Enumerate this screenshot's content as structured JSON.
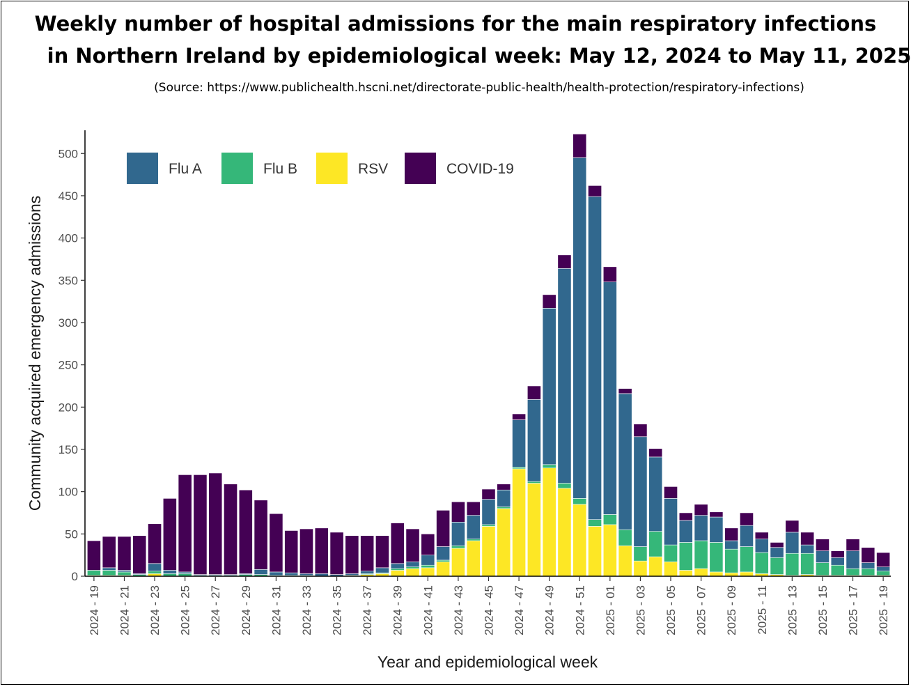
{
  "header": {
    "title_line1": "Weekly number of hospital admissions for the main respiratory infections",
    "title_line2": "in Northern Ireland by epidemiological week: May 12, 2024 to May 11, 2025",
    "source": "(Source: https://www.publichealth.hscni.net/directorate-public-health/health-protection/respiratory-infections)"
  },
  "chart_data": {
    "type": "bar",
    "stacked": true,
    "title": "Weekly number of hospital admissions for the main respiratory infections in Northern Ireland by epidemiological week: May 12, 2024 to May 11, 2025",
    "xlabel": "Year and epidemiological week",
    "ylabel": "Community acquired emergency admissions",
    "ylim": [
      0,
      525
    ],
    "yticks": [
      0,
      50,
      100,
      150,
      200,
      250,
      300,
      350,
      400,
      450,
      500
    ],
    "grid": false,
    "legend_position": "top-left",
    "categories": [
      "2024 - 19",
      "2024 - 20",
      "2024 - 21",
      "2024 - 22",
      "2024 - 23",
      "2024 - 24",
      "2024 - 25",
      "2024 - 26",
      "2024 - 27",
      "2024 - 28",
      "2024 - 29",
      "2024 - 30",
      "2024 - 31",
      "2024 - 32",
      "2024 - 33",
      "2024 - 34",
      "2024 - 35",
      "2024 - 36",
      "2024 - 37",
      "2024 - 38",
      "2024 - 39",
      "2024 - 40",
      "2024 - 41",
      "2024 - 42",
      "2024 - 43",
      "2024 - 44",
      "2024 - 45",
      "2024 - 46",
      "2024 - 47",
      "2024 - 48",
      "2024 - 49",
      "2024 - 50",
      "2024 - 51",
      "2024 - 52",
      "2025 - 01",
      "2025 - 02",
      "2025 - 03",
      "2025 - 04",
      "2025 - 05",
      "2025 - 06",
      "2025 - 07",
      "2025 - 08",
      "2025 - 09",
      "2025 - 10",
      "2025 - 11",
      "2025 - 12",
      "2025 - 13",
      "2025 - 14",
      "2025 - 15",
      "2025 - 16",
      "2025 - 17",
      "2025 - 18",
      "2025 - 19"
    ],
    "tick_labels": [
      "2024 - 19",
      "2024 - 21",
      "2024 - 23",
      "2024 - 25",
      "2024 - 27",
      "2024 - 29",
      "2024 - 31",
      "2024 - 33",
      "2024 - 35",
      "2024 - 37",
      "2024 - 39",
      "2024 - 41",
      "2024 - 43",
      "2024 - 45",
      "2024 - 47",
      "2024 - 49",
      "2024 - 51",
      "2025 - 01",
      "2025 - 03",
      "2025 - 05",
      "2025 - 07",
      "2025 - 09",
      "2025 - 11",
      "2025 - 13",
      "2025 - 15",
      "2025 - 17",
      "2025 - 19"
    ],
    "series": [
      {
        "name": "RSV",
        "color": "#fde725",
        "values": [
          1,
          1,
          1,
          0,
          3,
          0,
          0,
          0,
          0,
          0,
          0,
          0,
          0,
          0,
          0,
          0,
          0,
          1,
          2,
          3,
          7,
          9,
          10,
          17,
          33,
          42,
          59,
          80,
          127,
          110,
          128,
          104,
          85,
          59,
          61,
          36,
          18,
          23,
          17,
          7,
          9,
          5,
          4,
          5,
          3,
          2,
          1,
          2,
          1,
          1,
          1,
          1,
          1
        ]
      },
      {
        "name": "Flu B",
        "color": "#35b779",
        "values": [
          6,
          6,
          4,
          2,
          3,
          3,
          3,
          1,
          1,
          1,
          2,
          2,
          1,
          1,
          1,
          0,
          0,
          0,
          1,
          1,
          2,
          2,
          3,
          2,
          3,
          2,
          2,
          2,
          2,
          2,
          4,
          6,
          7,
          8,
          12,
          19,
          17,
          30,
          20,
          33,
          33,
          35,
          28,
          30,
          25,
          20,
          26,
          25,
          15,
          12,
          8,
          8,
          5
        ]
      },
      {
        "name": "Flu A",
        "color": "#31688e",
        "values": [
          0,
          3,
          2,
          1,
          9,
          4,
          2,
          1,
          1,
          1,
          1,
          6,
          4,
          3,
          2,
          3,
          2,
          2,
          3,
          6,
          6,
          6,
          12,
          16,
          28,
          28,
          30,
          20,
          56,
          97,
          185,
          254,
          403,
          382,
          275,
          161,
          130,
          88,
          55,
          26,
          30,
          30,
          10,
          25,
          16,
          12,
          25,
          10,
          14,
          9,
          21,
          7,
          5
        ]
      },
      {
        "name": "COVID-19",
        "color": "#440154",
        "values": [
          35,
          37,
          40,
          45,
          47,
          85,
          115,
          118,
          120,
          107,
          99,
          82,
          69,
          50,
          53,
          54,
          50,
          45,
          42,
          38,
          48,
          39,
          25,
          43,
          24,
          16,
          12,
          7,
          7,
          16,
          16,
          16,
          28,
          13,
          18,
          6,
          15,
          10,
          14,
          9,
          13,
          6,
          15,
          15,
          8,
          6,
          14,
          15,
          14,
          8,
          14,
          18,
          17
        ]
      }
    ]
  }
}
